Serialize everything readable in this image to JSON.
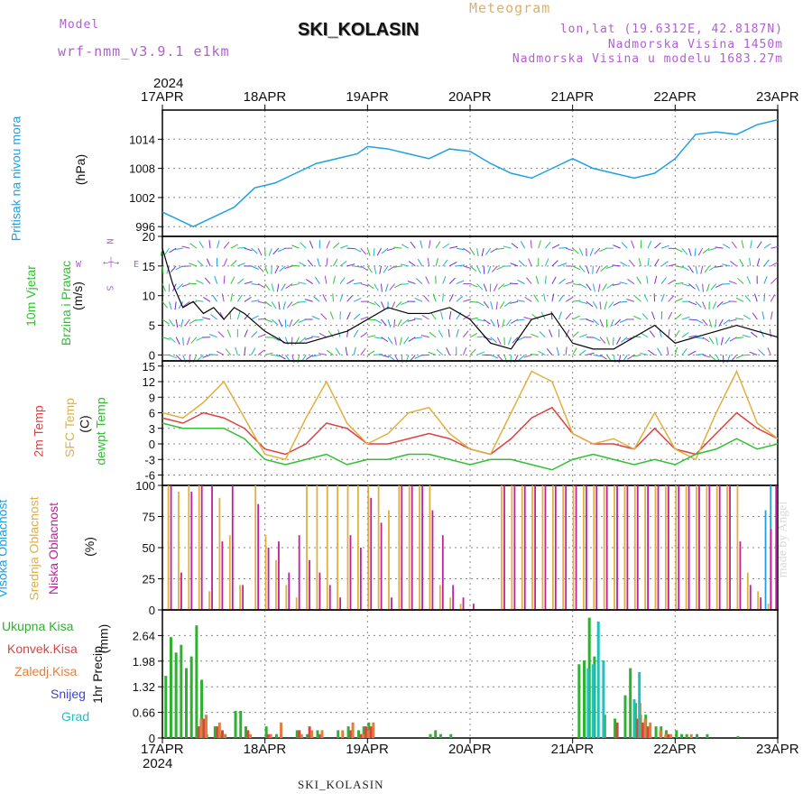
{
  "header": {
    "model_label": "Model",
    "model_name": "wrf-nmm_v3.9.1  e1km",
    "station": "SKI_KOLASIN",
    "meteogram": "Meteogram",
    "lonlat": "lon,lat (19.6312E, 42.8187N)",
    "altitude": "Nadmorska Visina 1450m",
    "model_altitude": "Nadmorska Visina u modelu 1683.27m"
  },
  "year": "2024",
  "dates": [
    "17APR",
    "18APR",
    "19APR",
    "20APR",
    "21APR",
    "22APR",
    "23APR"
  ],
  "footer": "SKI_KOLASIN",
  "watermark": "made by Angel",
  "colors": {
    "pressure": "#20a0e0",
    "temp2m": "#e04040",
    "sfc": "#e0b040",
    "dewpt": "#30c030",
    "high_cloud": "#20a0e0",
    "mid_cloud": "#e0b040",
    "low_cloud": "#c020a0",
    "total_precip": "#30b030",
    "conv_precip": "#e04040",
    "frozen_precip": "#e08040",
    "snow": "#4040e0",
    "hail": "#20c0c0"
  },
  "chart_data": [
    {
      "type": "line",
      "id": "pressure",
      "ylabel_main": "Pritisak na nivou mora",
      "ylabel_unit": "(hPa)",
      "yticks": [
        996,
        1002,
        1008,
        1014
      ],
      "ylim": [
        994,
        1020
      ],
      "x_days": [
        0,
        0.2,
        0.3,
        0.5,
        0.7,
        0.9,
        1.1,
        1.3,
        1.5,
        1.7,
        1.9,
        2.0,
        2.2,
        2.4,
        2.6,
        2.8,
        3.0,
        3.2,
        3.4,
        3.6,
        3.8,
        4.0,
        4.2,
        4.4,
        4.6,
        4.8,
        5.0,
        5.2,
        5.4,
        5.6,
        5.8,
        6.0
      ],
      "values": [
        999,
        997,
        996,
        998,
        1000,
        1004,
        1005,
        1007,
        1009,
        1010,
        1011,
        1012.5,
        1012,
        1011,
        1010,
        1012,
        1011.5,
        1009,
        1007,
        1006,
        1008,
        1010,
        1008,
        1007,
        1006,
        1007,
        1010,
        1015,
        1015.5,
        1015,
        1017,
        1018
      ],
      "grid": true
    },
    {
      "type": "line",
      "id": "wind",
      "ylabel_main": "10m Vjetar",
      "ylabel_sub": "Brzina i Pravac",
      "ylabel_unit": "(m/s)",
      "compass": [
        "N",
        "S",
        "W",
        "E"
      ],
      "yticks": [
        0,
        5,
        10,
        15,
        20
      ],
      "ylim": [
        -1,
        20
      ],
      "x_days": [
        0,
        0.1,
        0.2,
        0.3,
        0.4,
        0.5,
        0.6,
        0.7,
        0.8,
        1.0,
        1.2,
        1.4,
        1.6,
        1.8,
        2.0,
        2.2,
        2.4,
        2.6,
        2.8,
        3.0,
        3.2,
        3.4,
        3.6,
        3.8,
        4.0,
        4.2,
        4.4,
        4.6,
        4.8,
        5.0,
        5.2,
        5.4,
        5.6,
        5.8,
        6.0
      ],
      "values": [
        18,
        12,
        8,
        9,
        7,
        8,
        6,
        8,
        7,
        4,
        2,
        2,
        3,
        4,
        6,
        8,
        7,
        7,
        8,
        6,
        2,
        1,
        6,
        7,
        2,
        1,
        1,
        3,
        5,
        2,
        3,
        4,
        5,
        4,
        3
      ],
      "grid": true
    },
    {
      "type": "line",
      "id": "temperature",
      "ylabel_main": "2m Temp",
      "ylabel_sub": "SFC Temp",
      "ylabel_sub2": "dewpt Temp",
      "ylabel_unit": "(C)",
      "yticks": [
        -6,
        -3,
        0,
        3,
        6,
        9,
        12,
        15
      ],
      "ylim": [
        -8,
        16
      ],
      "x_days": [
        0,
        0.2,
        0.4,
        0.6,
        0.8,
        1.0,
        1.2,
        1.4,
        1.6,
        1.8,
        2.0,
        2.2,
        2.4,
        2.6,
        2.8,
        3.0,
        3.2,
        3.4,
        3.6,
        3.8,
        4.0,
        4.2,
        4.4,
        4.6,
        4.8,
        5.0,
        5.2,
        5.4,
        5.6,
        5.8,
        6.0
      ],
      "series": [
        {
          "name": "2m Temp",
          "color_key": "temp2m",
          "values": [
            5,
            4,
            6,
            5,
            3,
            -1,
            -2,
            0,
            4,
            3,
            0,
            0,
            1,
            2,
            1,
            -1,
            -2,
            1,
            5,
            7,
            2,
            0,
            0,
            -1,
            3,
            -1,
            -2,
            2,
            6,
            3,
            1
          ]
        },
        {
          "name": "SFC Temp",
          "color_key": "sfc",
          "values": [
            6,
            5,
            8,
            12,
            5,
            -2,
            -3,
            5,
            12,
            4,
            0,
            2,
            6,
            7,
            2,
            -1,
            -2,
            6,
            14,
            12,
            2,
            0,
            1,
            -1,
            6,
            -1,
            -3,
            6,
            14,
            4,
            1
          ]
        },
        {
          "name": "dewpt Temp",
          "color_key": "dewpt",
          "values": [
            4,
            3,
            3,
            3,
            1,
            -3,
            -4,
            -3,
            -2,
            -4,
            -3,
            -3,
            -2,
            -2,
            -3,
            -4,
            -3,
            -3,
            -4,
            -5,
            -3,
            -2,
            -3,
            -4,
            -3,
            -4,
            -2,
            -1,
            1,
            -1,
            0
          ]
        }
      ],
      "grid": true
    },
    {
      "type": "bar",
      "id": "cloud",
      "ylabel_main": "Visoka Oblacnost",
      "ylabel_sub": "Srednja Oblacnost",
      "ylabel_sub2": "Niska Oblacnost",
      "ylabel_unit": "(%)",
      "yticks": [
        0,
        25,
        50,
        75,
        100
      ],
      "ylim": [
        0,
        100
      ],
      "x_days": [
        0.05,
        0.15,
        0.25,
        0.35,
        0.45,
        0.55,
        0.65,
        0.75,
        0.9,
        1.0,
        1.1,
        1.2,
        1.3,
        1.4,
        1.5,
        1.6,
        1.7,
        1.8,
        1.9,
        2.0,
        2.1,
        2.2,
        2.3,
        2.4,
        2.5,
        2.6,
        2.7,
        2.8,
        2.9,
        3.0,
        3.3,
        3.4,
        3.5,
        3.6,
        3.7,
        3.8,
        3.9,
        4.0,
        4.1,
        4.2,
        4.3,
        4.4,
        4.5,
        4.6,
        4.7,
        4.8,
        4.9,
        5.0,
        5.1,
        5.2,
        5.3,
        5.4,
        5.5,
        5.6,
        5.7,
        5.8,
        5.9,
        5.95
      ],
      "series": [
        {
          "name": "Visoka Oblacnost",
          "color_key": "high_cloud",
          "values": [
            0,
            0,
            0,
            0,
            0,
            0,
            0,
            0,
            0,
            0,
            0,
            0,
            0,
            0,
            0,
            0,
            0,
            0,
            0,
            0,
            0,
            0,
            0,
            0,
            0,
            0,
            0,
            0,
            0,
            0,
            0,
            0,
            0,
            0,
            0,
            0,
            0,
            0,
            0,
            0,
            0,
            0,
            0,
            0,
            0,
            0,
            0,
            0,
            0,
            0,
            0,
            0,
            0,
            0,
            0,
            0,
            80,
            100
          ]
        },
        {
          "name": "Srednja Oblacnost",
          "color_key": "mid_cloud",
          "values": [
            100,
            95,
            100,
            100,
            15,
            90,
            60,
            20,
            100,
            60,
            40,
            20,
            10,
            100,
            100,
            100,
            100,
            100,
            100,
            100,
            100,
            80,
            100,
            100,
            100,
            100,
            20,
            10,
            5,
            0,
            100,
            100,
            100,
            100,
            100,
            100,
            100,
            100,
            100,
            100,
            100,
            100,
            100,
            100,
            100,
            100,
            100,
            100,
            100,
            100,
            100,
            100,
            100,
            100,
            30,
            15,
            5,
            0
          ]
        },
        {
          "name": "Niska Oblacnost",
          "color_key": "low_cloud",
          "values": [
            100,
            30,
            95,
            100,
            100,
            55,
            100,
            20,
            85,
            50,
            55,
            30,
            60,
            40,
            30,
            20,
            10,
            60,
            50,
            90,
            70,
            10,
            100,
            100,
            100,
            80,
            60,
            20,
            10,
            5,
            100,
            100,
            100,
            100,
            100,
            100,
            100,
            100,
            100,
            100,
            100,
            100,
            100,
            100,
            100,
            100,
            100,
            100,
            100,
            100,
            100,
            100,
            100,
            55,
            20,
            10,
            65,
            100
          ]
        }
      ],
      "grid": true
    },
    {
      "type": "bar",
      "id": "precip",
      "ylabel_main": "1hr Precip",
      "ylabel_unit": "(mm)",
      "yticks": [
        0,
        0.66,
        1.32,
        1.98,
        2.64
      ],
      "ylim": [
        0,
        3.3
      ],
      "legend": [
        "Ukupna Kisa",
        "Konvek.Kisa",
        "Zaledj.Kisa",
        "Snijeg",
        "Grad"
      ],
      "x_days": [
        0.02,
        0.07,
        0.12,
        0.17,
        0.22,
        0.27,
        0.32,
        0.37,
        0.42,
        0.5,
        0.55,
        0.6,
        0.7,
        0.75,
        0.8,
        1.0,
        1.1,
        1.3,
        1.4,
        1.5,
        1.7,
        1.8,
        1.9,
        1.95,
        2.0,
        2.6,
        2.65,
        2.7,
        2.8,
        4.05,
        4.1,
        4.15,
        4.2,
        4.3,
        4.4,
        4.5,
        4.55,
        4.6,
        4.65,
        4.7,
        4.8,
        4.85,
        4.9,
        5.0,
        5.05,
        5.1,
        5.2,
        5.3,
        5.6
      ],
      "series": [
        {
          "name": "Ukupna Kisa",
          "color_key": "total_precip",
          "values": [
            1.6,
            2.6,
            2.2,
            2.4,
            1.8,
            2.1,
            2.9,
            1.5,
            0.1,
            0.3,
            0.1,
            0.1,
            0.7,
            0.7,
            0.3,
            0.3,
            0.1,
            0.2,
            0.1,
            0.2,
            0.2,
            0.3,
            0.2,
            0.3,
            0.4,
            0.1,
            0.2,
            0.1,
            0.1,
            1.9,
            2.0,
            3.1,
            2.1,
            0.6,
            0.5,
            1.1,
            1.8,
            0.9,
            0.6,
            0.6,
            0.3,
            0.3,
            0.2,
            0.2,
            0.1,
            0.1,
            0.1,
            0.1,
            0.05
          ]
        },
        {
          "name": "Konvek.Kisa",
          "color_key": "conv_precip",
          "values": [
            0,
            0,
            0,
            0,
            0,
            0,
            0.3,
            0.5,
            0,
            0.3,
            0.2,
            0,
            0,
            0,
            0.2,
            0.1,
            0,
            0.2,
            0.3,
            0.1,
            0,
            0.2,
            0.1,
            0.3,
            0.3,
            0,
            0,
            0,
            0,
            0,
            0,
            0,
            0,
            0,
            0.4,
            0,
            0,
            0.5,
            0.4,
            0.3,
            0,
            0,
            0.1,
            0,
            0,
            0,
            0,
            0,
            0
          ]
        },
        {
          "name": "Zaledj.Kisa",
          "color_key": "frozen_precip",
          "values": [
            0,
            0,
            0,
            0,
            0,
            0,
            0.5,
            0.6,
            0,
            0.4,
            0.1,
            0,
            0,
            0,
            0.1,
            0.1,
            0.4,
            0.1,
            0.2,
            0.2,
            0.2,
            0.4,
            0.1,
            0.2,
            0.4,
            0,
            0,
            0,
            0,
            0,
            0,
            0,
            0,
            0,
            0,
            0,
            0,
            0.9,
            0.5,
            0.4,
            0.2,
            0.1,
            0.1,
            0,
            0,
            0.1,
            0,
            0,
            0
          ]
        },
        {
          "name": "Snijeg",
          "color_key": "snow",
          "values": [
            0,
            0,
            0,
            0,
            0,
            0,
            0,
            0,
            0,
            0,
            0,
            0,
            0,
            0,
            0,
            0,
            0,
            0,
            0,
            0,
            0,
            0,
            0,
            0,
            0,
            0,
            0,
            0,
            0,
            0,
            0,
            0,
            0,
            0,
            0,
            0,
            0,
            0,
            0,
            0,
            0,
            0,
            0,
            0,
            0,
            0,
            0,
            0,
            0
          ]
        },
        {
          "name": "Grad",
          "color_key": "hail",
          "values": [
            0,
            0,
            0,
            0,
            0,
            0,
            0,
            0,
            0,
            0,
            0,
            0,
            0,
            0,
            0,
            0,
            0,
            0,
            0,
            0,
            0,
            0,
            0,
            0,
            0,
            0,
            0,
            0,
            0,
            1.8,
            1.9,
            3.0,
            2.0,
            0,
            0,
            1.0,
            1.7,
            0,
            0,
            0,
            0,
            0,
            0,
            0,
            0,
            0,
            0,
            0,
            0
          ]
        }
      ],
      "grid": true
    }
  ]
}
